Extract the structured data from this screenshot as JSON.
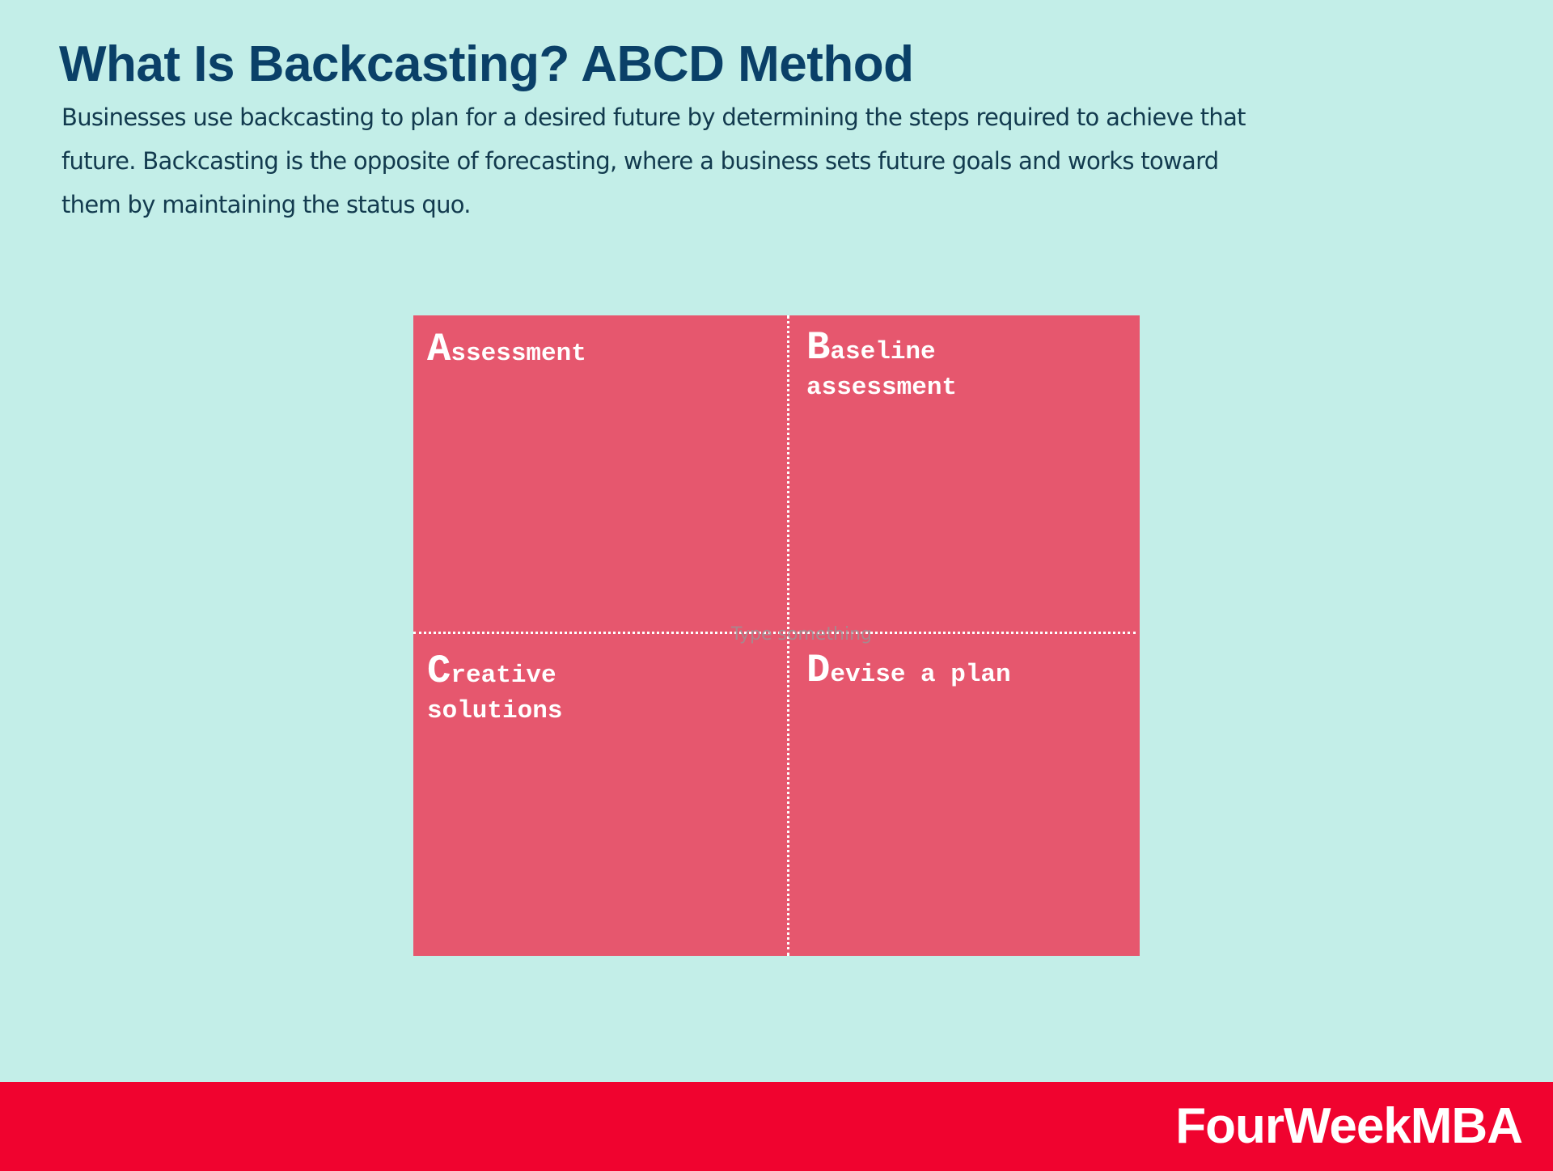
{
  "header": {
    "title": "What Is Backcasting? ABCD Method",
    "description": "Businesses use backcasting to plan for a desired future by determining the steps required to achieve that future. Backcasting is the opposite of forecasting, where a business sets future goals and works toward them by maintaining the status quo."
  },
  "matrix": {
    "placeholder": "Type something",
    "quadrants": [
      {
        "initial": "A",
        "rest": "ssessment"
      },
      {
        "initial": "B",
        "rest": "aseline assessment"
      },
      {
        "initial": "C",
        "rest": "reative solutions"
      },
      {
        "initial": "D",
        "rest": "evise a plan"
      }
    ]
  },
  "footer": {
    "brand": "FourWeekMBA"
  },
  "colors": {
    "background": "#c3eee8",
    "title": "#0a4068",
    "matrix_fill": "#e6576e",
    "footer_band": "#f0032f"
  }
}
